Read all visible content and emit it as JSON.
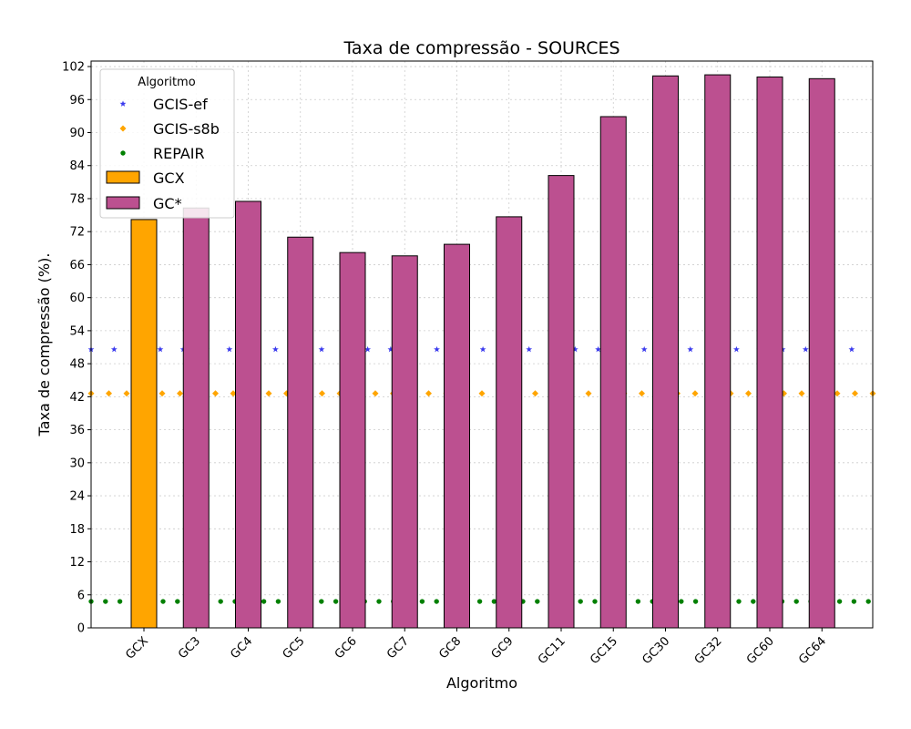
{
  "chart_data": {
    "type": "bar",
    "title": "Taxa de compressão -  SOURCES",
    "xlabel": "Algoritmo",
    "ylabel": "Taxa de compressão (%).",
    "ylim": [
      0,
      103
    ],
    "yticks": [
      0,
      6,
      12,
      18,
      24,
      30,
      36,
      42,
      48,
      54,
      60,
      66,
      72,
      78,
      84,
      90,
      96,
      102
    ],
    "grid": true,
    "categories": [
      "GCX",
      "GC3",
      "GC4",
      "GC5",
      "GC6",
      "GC7",
      "GC8",
      "GC9",
      "GC11",
      "GC15",
      "GC30",
      "GC32",
      "GC60",
      "GC64"
    ],
    "values": [
      74.2,
      76.3,
      77.5,
      71.0,
      68.2,
      67.6,
      69.7,
      74.7,
      82.2,
      92.9,
      100.3,
      100.5,
      100.1,
      99.8
    ],
    "bar_series": [
      {
        "name": "GCX",
        "color": "#ffa500",
        "categories": [
          "GCX"
        ]
      },
      {
        "name": "GC*",
        "color": "#bc5090",
        "categories": [
          "GC3",
          "GC4",
          "GC5",
          "GC6",
          "GC7",
          "GC8",
          "GC9",
          "GC11",
          "GC15",
          "GC30",
          "GC32",
          "GC60",
          "GC64"
        ]
      }
    ],
    "reference_lines": [
      {
        "name": "GCIS-ef",
        "value": 50.6,
        "color": "#3a3aee",
        "marker": "star"
      },
      {
        "name": "GCIS-s8b",
        "value": 42.6,
        "color": "#ffa500",
        "marker": "diamond"
      },
      {
        "name": "REPAIR",
        "value": 4.8,
        "color": "#008000",
        "marker": "circle"
      }
    ],
    "legend": {
      "title": "Algoritmo",
      "position": "top-left",
      "entries": [
        "GCIS-ef",
        "GCIS-s8b",
        "REPAIR",
        "GCX",
        "GC*"
      ]
    }
  }
}
